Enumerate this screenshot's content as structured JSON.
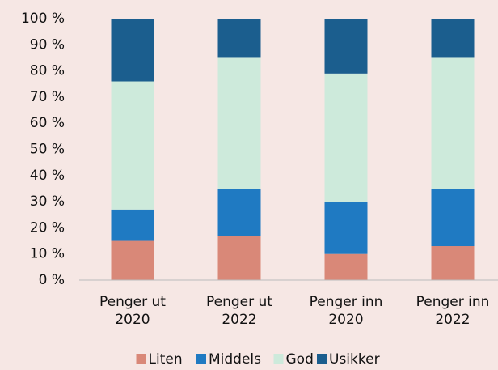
{
  "chart_data": {
    "type": "stacked_bar",
    "categories": [
      "Penger ut 2020",
      "Penger ut 2022",
      "Penger inn 2020",
      "Penger inn 2022"
    ],
    "series": [
      {
        "name": "Liten",
        "color": "#d98878",
        "values": [
          15,
          17,
          10,
          13
        ]
      },
      {
        "name": "Middels",
        "color": "#1f7ac2",
        "values": [
          12,
          18,
          20,
          22
        ]
      },
      {
        "name": "God",
        "color": "#cdeadb",
        "values": [
          49,
          50,
          49,
          50
        ]
      },
      {
        "name": "Usikker",
        "color": "#1b5e8e",
        "values": [
          24,
          15,
          21,
          15
        ]
      }
    ],
    "ylim": [
      0,
      100
    ],
    "yticks": [
      {
        "value": 0,
        "label": "0 %"
      },
      {
        "value": 10,
        "label": "10 %"
      },
      {
        "value": 20,
        "label": "20 %"
      },
      {
        "value": 30,
        "label": "30 %"
      },
      {
        "value": 40,
        "label": "40 %"
      },
      {
        "value": 50,
        "label": "50 %"
      },
      {
        "value": 60,
        "label": "60 %"
      },
      {
        "value": 70,
        "label": "70 %"
      },
      {
        "value": 80,
        "label": "80 %"
      },
      {
        "value": 90,
        "label": "90 %"
      },
      {
        "value": 100,
        "label": "100 %"
      }
    ],
    "grid": false,
    "legend": "bottom"
  }
}
